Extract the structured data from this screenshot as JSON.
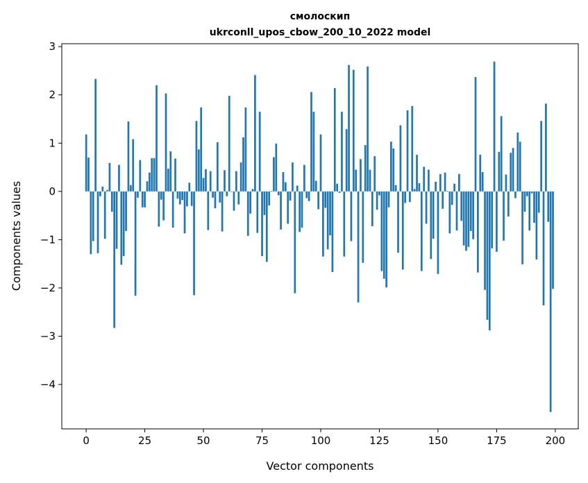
{
  "chart_data": {
    "type": "bar",
    "title_lines": [
      "смолоскип",
      "ukrconll_upos_cbow_200_10_2022 model"
    ],
    "xlabel": "Vector components",
    "ylabel": "Components values",
    "xlim": [
      -10.4,
      209.8
    ],
    "ylim": [
      -4.92,
      3.06
    ],
    "xticks": [
      0,
      25,
      50,
      75,
      100,
      125,
      150,
      175,
      200
    ],
    "xtick_labels": [
      "0",
      "25",
      "50",
      "75",
      "100",
      "125",
      "150",
      "175",
      "200"
    ],
    "yticks": [
      -4,
      -3,
      -2,
      -1,
      0,
      1,
      2,
      3
    ],
    "ytick_labels": [
      "−4",
      "−3",
      "−2",
      "−1",
      "0",
      "1",
      "2",
      "3"
    ],
    "grid": false,
    "bar_color": "#1f77b4",
    "values": [
      1.18,
      0.7,
      -1.3,
      -1.03,
      2.33,
      -1.28,
      -0.1,
      0.1,
      -0.98,
      0.03,
      0.59,
      -0.42,
      -2.83,
      -1.19,
      0.55,
      -1.52,
      -1.34,
      -0.82,
      1.45,
      0.13,
      1.08,
      -2.16,
      -0.13,
      0.65,
      -0.33,
      -0.33,
      0.21,
      0.39,
      0.69,
      0.69,
      2.2,
      -0.73,
      -0.17,
      -0.6,
      2.03,
      0.47,
      0.83,
      -0.75,
      0.68,
      -0.15,
      -0.27,
      -0.18,
      -0.87,
      -0.31,
      0.18,
      -0.3,
      -2.15,
      1.46,
      0.87,
      1.74,
      0.28,
      0.46,
      -0.8,
      0.42,
      -0.13,
      -0.35,
      1.02,
      -0.23,
      -0.83,
      0.44,
      -0.1,
      1.98,
      -0.01,
      -0.4,
      0.42,
      -0.27,
      0.6,
      1.12,
      1.74,
      -0.92,
      -0.46,
      0.05,
      2.41,
      -0.86,
      1.65,
      -1.34,
      -0.49,
      -1.46,
      -0.29,
      0.01,
      0.71,
      0.99,
      -0.08,
      -0.79,
      0.4,
      0.19,
      -0.67,
      -0.19,
      0.6,
      -2.11,
      0.12,
      -0.84,
      -0.75,
      0.55,
      -0.14,
      -0.2,
      2.06,
      1.65,
      0.22,
      -0.37,
      1.18,
      -1.35,
      -0.34,
      -1.2,
      -0.91,
      -1.67,
      2.14,
      0.16,
      -0.03,
      1.65,
      -1.35,
      1.29,
      2.62,
      -1.03,
      2.52,
      0.45,
      -2.3,
      0.67,
      -1.48,
      0.96,
      2.59,
      0.45,
      -0.72,
      0.73,
      -0.38,
      -0.08,
      -1.65,
      -1.81,
      -1.99,
      -0.33,
      1.03,
      0.89,
      0.13,
      -1.27,
      1.37,
      -1.62,
      -0.24,
      1.68,
      -0.22,
      1.77,
      0.05,
      0.76,
      0.17,
      -1.65,
      0.51,
      -0.67,
      0.45,
      -1.4,
      -0.98,
      0.2,
      -1.71,
      0.36,
      -0.36,
      0.39,
      0.01,
      -0.87,
      -0.28,
      0.16,
      -0.81,
      0.36,
      -0.61,
      -1.12,
      -1.23,
      -1.15,
      -0.82,
      -0.99,
      2.37,
      -1.68,
      0.76,
      0.4,
      -2.04,
      -2.66,
      -2.88,
      -1.18,
      2.69,
      -1.25,
      0.82,
      1.56,
      -1.02,
      0.35,
      -0.52,
      0.8,
      0.9,
      -0.14,
      1.22,
      1.03,
      -1.51,
      -0.42,
      -0.1,
      -0.81,
      -0.04,
      -0.65,
      -1.41,
      -0.44,
      1.46,
      -2.36,
      1.82,
      -0.63,
      -4.57,
      -2.02
    ]
  }
}
